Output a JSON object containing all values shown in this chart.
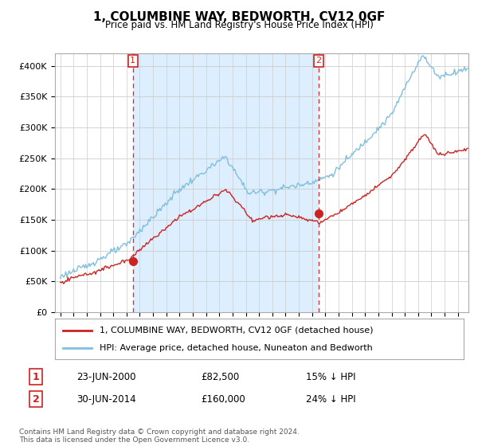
{
  "title": "1, COLUMBINE WAY, BEDWORTH, CV12 0GF",
  "subtitle": "Price paid vs. HM Land Registry's House Price Index (HPI)",
  "ylim": [
    0,
    420000
  ],
  "yticks": [
    0,
    50000,
    100000,
    150000,
    200000,
    250000,
    300000,
    350000,
    400000
  ],
  "legend_entry1": "1, COLUMBINE WAY, BEDWORTH, CV12 0GF (detached house)",
  "legend_entry2": "HPI: Average price, detached house, Nuneaton and Bedworth",
  "sale1_date": "23-JUN-2000",
  "sale1_price": 82500,
  "sale1_pct": "15% ↓ HPI",
  "sale2_date": "30-JUN-2014",
  "sale2_price": 160000,
  "sale2_pct": "24% ↓ HPI",
  "footnote": "Contains HM Land Registry data © Crown copyright and database right 2024.\nThis data is licensed under the Open Government Licence v3.0.",
  "hpi_color": "#7fbfdf",
  "price_color": "#cc2222",
  "vline_color": "#cc2222",
  "shade_color": "#ddeeff",
  "background_color": "#ffffff",
  "grid_color": "#cccccc",
  "sale1_x": 2000.48,
  "sale2_x": 2014.5,
  "xlim_left": 1994.6,
  "xlim_right": 2025.8
}
